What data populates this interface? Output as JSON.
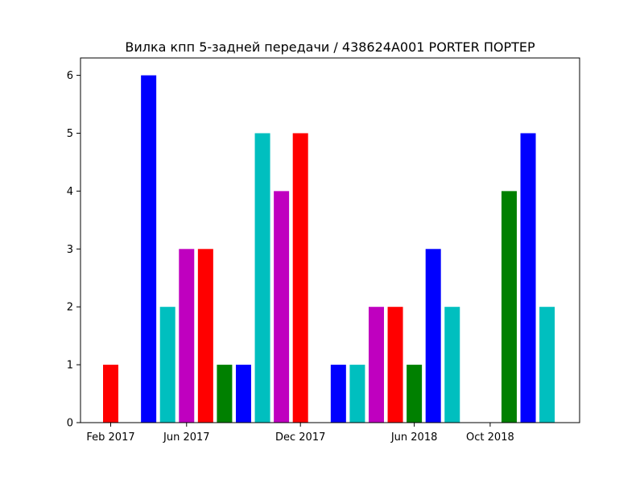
{
  "chart_data": {
    "type": "bar",
    "title": "Вилка кпп 5-задней передачи / 438624A001 PORTER ПОРТЕР",
    "xlabel": "",
    "ylabel": "",
    "ylim": [
      0,
      6.3
    ],
    "grid": false,
    "x_ticks": [
      {
        "date": "2017-02",
        "label": "Feb 2017"
      },
      {
        "date": "2017-06",
        "label": "Jun 2017"
      },
      {
        "date": "2017-12",
        "label": "Dec 2017"
      },
      {
        "date": "2018-06",
        "label": "Jun 2018"
      },
      {
        "date": "2018-10",
        "label": "Oct 2018"
      }
    ],
    "y_ticks": [
      0,
      1,
      2,
      3,
      4,
      5,
      6
    ],
    "bars": [
      {
        "date": "2017-02",
        "value": 1,
        "color": "#ff0000"
      },
      {
        "date": "2017-04",
        "value": 6,
        "color": "#0000ff"
      },
      {
        "date": "2017-05",
        "value": 2,
        "color": "#00bfbf"
      },
      {
        "date": "2017-06",
        "value": 3,
        "color": "#bf00bf"
      },
      {
        "date": "2017-07",
        "value": 3,
        "color": "#ff0000"
      },
      {
        "date": "2017-08",
        "value": 1,
        "color": "#008000"
      },
      {
        "date": "2017-09",
        "value": 1,
        "color": "#0000ff"
      },
      {
        "date": "2017-10",
        "value": 5,
        "color": "#00bfbf"
      },
      {
        "date": "2017-11",
        "value": 4,
        "color": "#bf00bf"
      },
      {
        "date": "2017-12",
        "value": 5,
        "color": "#ff0000"
      },
      {
        "date": "2018-02",
        "value": 1,
        "color": "#0000ff"
      },
      {
        "date": "2018-03",
        "value": 1,
        "color": "#00bfbf"
      },
      {
        "date": "2018-04",
        "value": 2,
        "color": "#bf00bf"
      },
      {
        "date": "2018-05",
        "value": 2,
        "color": "#ff0000"
      },
      {
        "date": "2018-06",
        "value": 1,
        "color": "#008000"
      },
      {
        "date": "2018-07",
        "value": 3,
        "color": "#0000ff"
      },
      {
        "date": "2018-08",
        "value": 2,
        "color": "#00bfbf"
      },
      {
        "date": "2018-11",
        "value": 4,
        "color": "#008000"
      },
      {
        "date": "2018-12",
        "value": 5,
        "color": "#0000ff"
      },
      {
        "date": "2019-01",
        "value": 2,
        "color": "#00bfbf"
      }
    ]
  }
}
